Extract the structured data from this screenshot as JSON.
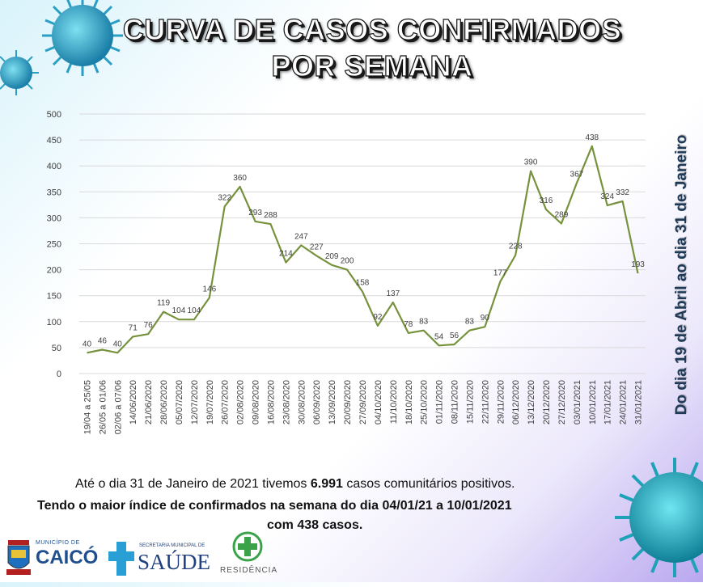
{
  "title_line1": "CURVA DE CASOS CONFIRMADOS",
  "title_line2": "POR SEMANA",
  "side_text": "Do dia 19 de Abril ao dia 31 de Janeiro",
  "caption": {
    "line1_pre": "Até o dia 31 de Janeiro de 2021 tivemos ",
    "line1_bold": "6.991",
    "line1_post": " casos comunitários positivos.",
    "line2": "Tendo o maior índice de confirmados na semana do dia 04/01/21 a 10/01/2021",
    "line3": "com 438 casos."
  },
  "logos": {
    "caico_small": "MUNICÍPIO DE",
    "caico": "CAICÓ",
    "saude_small": "SECRETARIA MUNICIPAL DE",
    "saude": "SAÚDE",
    "residencia": "RESIDÊNCIA"
  },
  "colors": {
    "line": "#76923c",
    "grid": "#d9d9d9",
    "text": "#404040"
  },
  "chart_data": {
    "type": "line",
    "title": "CURVA DE CASOS CONFIRMADOS POR SEMANA",
    "categories": [
      "19/04 a 25/05",
      "26/05 a 01/06",
      "02/06 a 07/06",
      "14/06/2020",
      "21/06/2020",
      "28/06/2020",
      "05/07/2020",
      "12/07/2020",
      "19/07/2020",
      "26/07/2020",
      "02/08/2020",
      "09/08/2020",
      "16/08/2020",
      "23/08/2020",
      "30/08/2020",
      "06/09/2020",
      "13/09/2020",
      "20/09/2020",
      "27/09/2020",
      "04/10/2020",
      "11/10/2020",
      "18/10/2020",
      "25/10/2020",
      "01/11/2020",
      "08/11/2020",
      "15/11/2020",
      "22/11/2020",
      "29/11/2020",
      "06/12/2020",
      "13/12/2020",
      "20/12/2020",
      "27/12/2020",
      "03/01/2021",
      "10/01/2021",
      "17/01/2021",
      "24/01/2021",
      "31/01/2021"
    ],
    "values": [
      40,
      46,
      40,
      71,
      76,
      119,
      104,
      104,
      146,
      322,
      360,
      293,
      288,
      214,
      247,
      227,
      209,
      200,
      158,
      92,
      137,
      78,
      83,
      54,
      56,
      83,
      90,
      177,
      228,
      390,
      316,
      289,
      367,
      438,
      324,
      332,
      193
    ],
    "ylim": [
      0,
      500
    ],
    "yticks": [
      0,
      50,
      100,
      150,
      200,
      250,
      300,
      350,
      400,
      450,
      500
    ],
    "grid": true,
    "legend": "none"
  }
}
